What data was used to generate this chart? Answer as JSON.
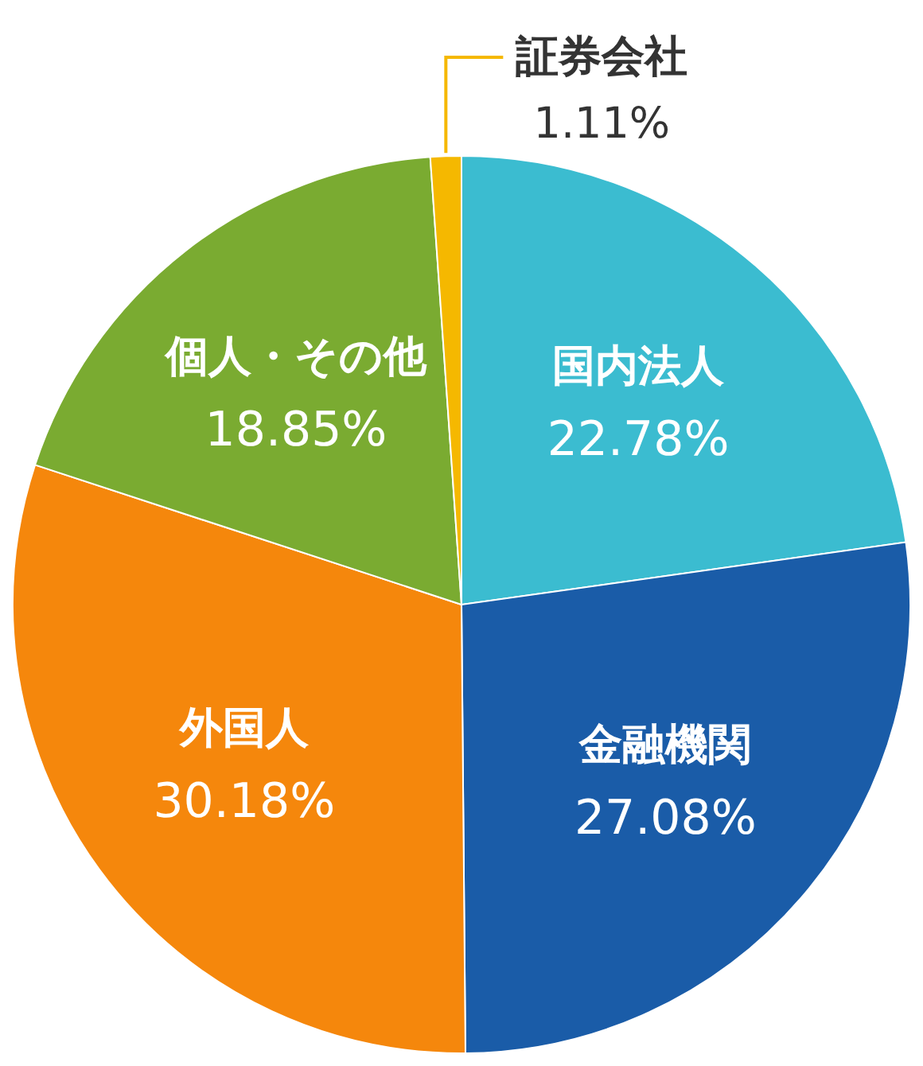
{
  "chart_data": {
    "type": "pie",
    "categories": [
      "国内法人",
      "金融機関",
      "外国人",
      "個人・その他",
      "証券会社"
    ],
    "values": [
      22.78,
      27.08,
      30.18,
      18.85,
      1.11
    ],
    "value_labels": [
      "22.78%",
      "27.08%",
      "30.18%",
      "18.85%",
      "1.11%"
    ],
    "colors": [
      "#3bbcd0",
      "#1a5ca8",
      "#f5870c",
      "#7aab31",
      "#f5b800"
    ],
    "legend": false
  }
}
